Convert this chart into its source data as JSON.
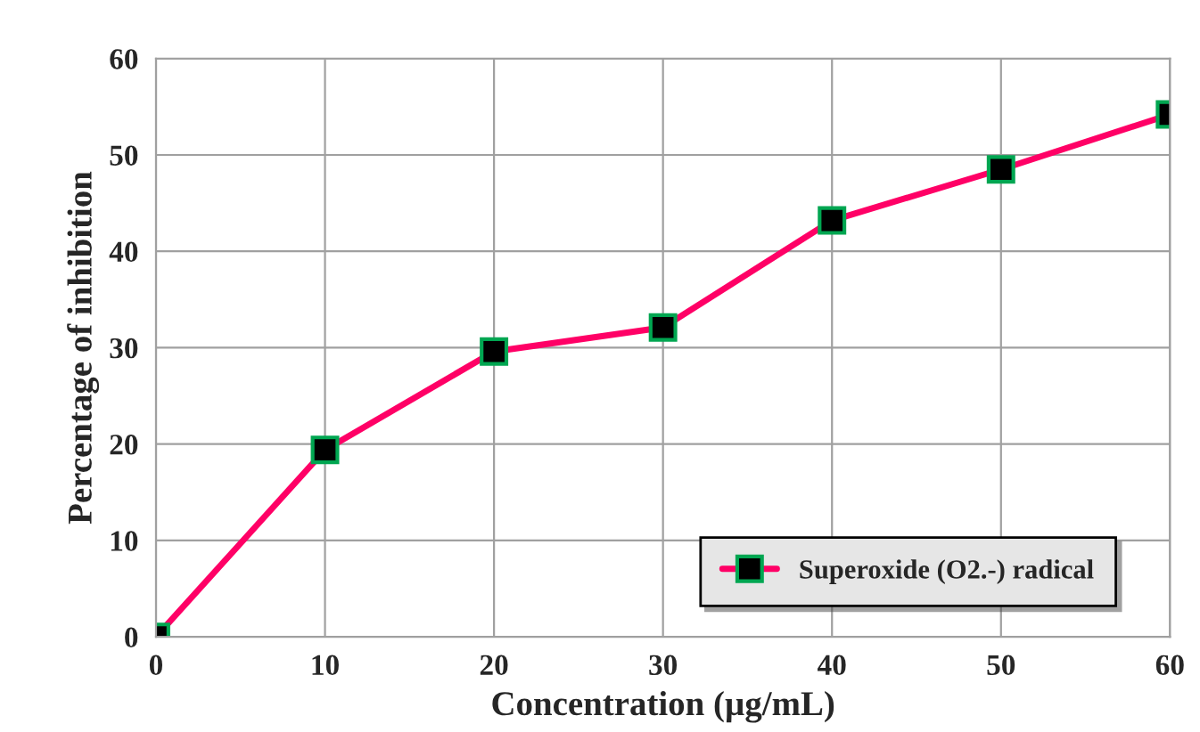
{
  "chart_data": {
    "type": "line",
    "xlabel": "Concentration (µg/mL)",
    "ylabel": "Percentage of inhibition",
    "x": [
      0,
      10,
      20,
      30,
      40,
      50,
      60
    ],
    "series": [
      {
        "name": "Superoxide (O2.-) radical",
        "color": "#ff0066",
        "values": [
          0,
          19.4,
          29.6,
          32.1,
          43.2,
          48.5,
          54.2
        ]
      }
    ],
    "xlim": [
      0,
      60
    ],
    "xticks": [
      0,
      10,
      20,
      30,
      40,
      50,
      60
    ],
    "ylim": [
      0,
      60
    ],
    "yticks": [
      0,
      10,
      20,
      30,
      40,
      50,
      60
    ],
    "grid": true,
    "legend": "bottom right",
    "marker": "square",
    "line_style": "solid"
  }
}
